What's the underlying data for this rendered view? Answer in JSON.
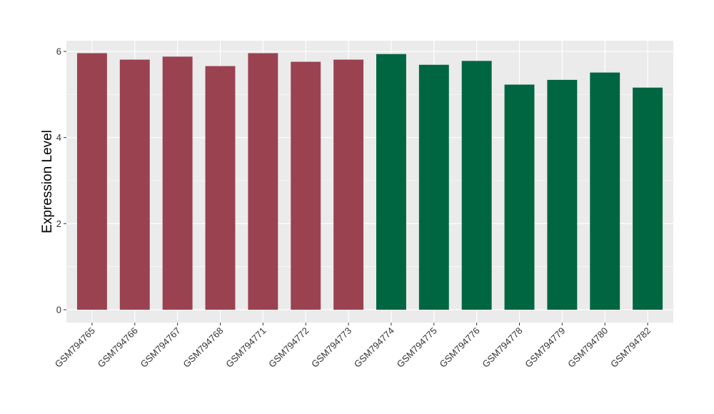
{
  "chart_data": {
    "type": "bar",
    "title": "",
    "xlabel": "",
    "ylabel": "Expression Level",
    "ylim": [
      -0.3,
      6.25
    ],
    "yticks": [
      0,
      2,
      4,
      6
    ],
    "grid": true,
    "legend": "none",
    "categories": [
      "GSM794765",
      "GSM794766",
      "GSM794767",
      "GSM794768",
      "GSM794771",
      "GSM794772",
      "GSM794773",
      "GSM794774",
      "GSM794775",
      "GSM794776",
      "GSM794778",
      "GSM794779",
      "GSM794780",
      "GSM794782"
    ],
    "values": [
      5.96,
      5.81,
      5.88,
      5.66,
      5.96,
      5.76,
      5.81,
      5.94,
      5.69,
      5.78,
      5.23,
      5.34,
      5.51,
      5.16
    ],
    "bar_colors": [
      "#9A4250",
      "#9A4250",
      "#9A4250",
      "#9A4250",
      "#9A4250",
      "#9A4250",
      "#9A4250",
      "#006641",
      "#006641",
      "#006641",
      "#006641",
      "#006641",
      "#006641",
      "#006641"
    ],
    "panel_background": "#EBEBEB",
    "grid_color": "#FFFFFF"
  }
}
